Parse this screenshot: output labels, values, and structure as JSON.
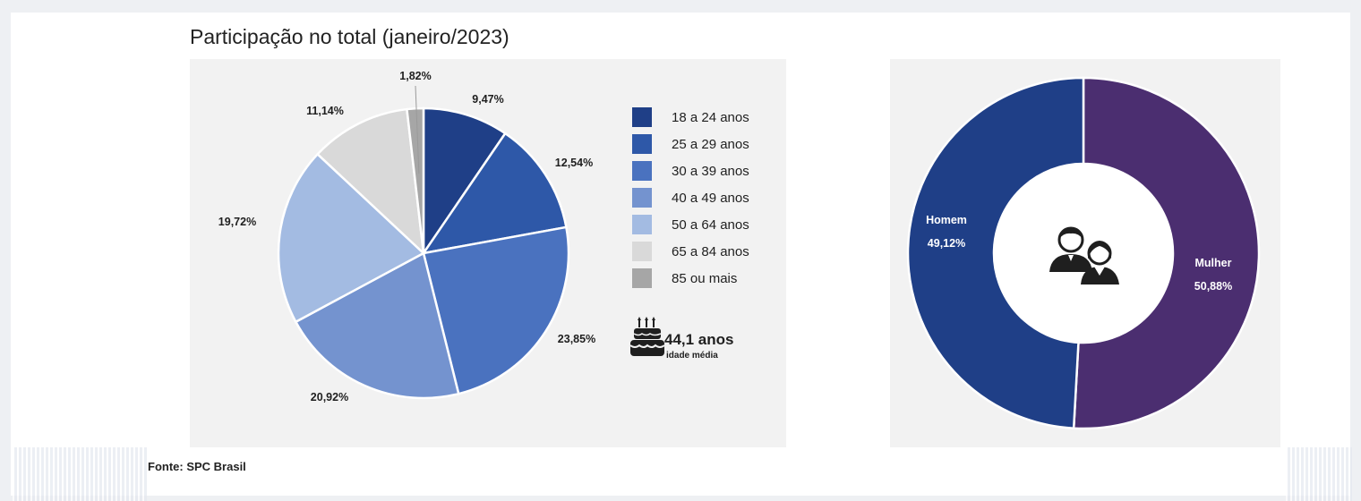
{
  "title": "Participação no total (janeiro/2023)",
  "source": "Fonte: SPC Brasil",
  "chart_data": [
    {
      "type": "pie",
      "title": "Participação no total (janeiro/2023)",
      "categories": [
        "18 a 24 anos",
        "25 a 29 anos",
        "30 a 39 anos",
        "40 a 49 anos",
        "50 a 64 anos",
        "65 a 84 anos",
        "85 ou mais"
      ],
      "values": [
        9.47,
        12.54,
        23.85,
        20.92,
        19.72,
        11.14,
        1.82
      ],
      "value_labels": [
        "9,47%",
        "12,54%",
        "23,85%",
        "20,92%",
        "19,72%",
        "11,14%",
        "1,82%"
      ],
      "colors": [
        "#1f3f87",
        "#2e58a8",
        "#4a72bf",
        "#7493cf",
        "#a3bbe2",
        "#d9d9d9",
        "#a6a6a6"
      ],
      "legend": "right",
      "annotation": {
        "value": "44,1 anos",
        "label": "idade média",
        "icon": "birthday-cake-icon"
      }
    },
    {
      "type": "pie",
      "variant": "donut",
      "categories": [
        "Mulher",
        "Homem"
      ],
      "values": [
        50.88,
        49.12
      ],
      "value_labels": [
        "50,88%",
        "49,12%"
      ],
      "colors": [
        "#4b2e70",
        "#1f3f87"
      ],
      "center_icon": "people-icon"
    }
  ]
}
